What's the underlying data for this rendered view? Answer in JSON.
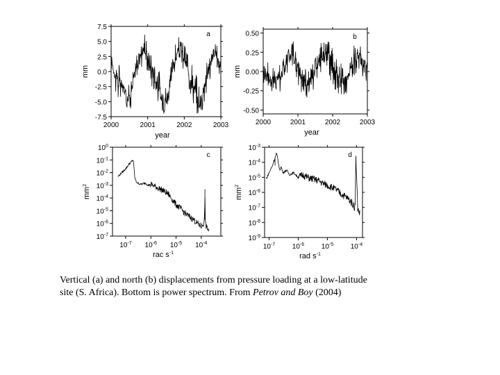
{
  "caption": {
    "line1": "Vertical (a) and north (b) displacements from pressure loading at a low-latitude",
    "line2_a": "site (S. Africa).  Bottom is power spectrum.  From ",
    "line2_italic": "Petrov and Boy",
    "line2_b": " (2004)"
  },
  "chart_data": [
    {
      "id": "a",
      "type": "line",
      "panel_label": "a",
      "xlabel": "year",
      "ylabel": "mm",
      "xlim": [
        2000,
        2003
      ],
      "ylim": [
        -7.5,
        7.5
      ],
      "xticks": [
        2000,
        2001,
        2002,
        2003
      ],
      "xtick_labels": [
        "2000",
        "2001",
        "2002",
        "2003"
      ],
      "yticks": [
        7.5,
        5.0,
        2.5,
        0.0,
        -2.5,
        -5.0,
        -7.5
      ],
      "ytick_labels": [
        "7.5",
        "5.0",
        "2.5",
        "0.0",
        "-2.5",
        "-5.0",
        "-7.5"
      ],
      "x": [
        2000.0,
        2000.1,
        2000.2,
        2000.3,
        2000.4,
        2000.5,
        2000.6,
        2000.7,
        2000.8,
        2000.9,
        2001.0,
        2001.1,
        2001.2,
        2001.3,
        2001.4,
        2001.5,
        2001.6,
        2001.7,
        2001.8,
        2001.9,
        2002.0,
        2002.1,
        2002.2,
        2002.3,
        2002.4,
        2002.5,
        2002.6,
        2002.7,
        2002.8,
        2002.9,
        2003.0
      ],
      "y": [
        2.5,
        -0.5,
        -1.5,
        -2.5,
        -3.5,
        -4.5,
        -2.0,
        1.0,
        2.5,
        4.0,
        2.0,
        0.5,
        -1.0,
        -3.0,
        -4.5,
        -5.0,
        -2.5,
        1.0,
        3.0,
        4.0,
        2.0,
        0.5,
        -1.5,
        -3.5,
        -5.5,
        -4.0,
        -1.0,
        1.0,
        3.0,
        2.5,
        1.0
      ],
      "y_max_envelope": [
        5.2,
        3.0,
        1.5,
        0.5,
        -0.5,
        -1.5,
        1.0,
        3.5,
        5.0,
        6.5,
        4.5,
        3.5,
        2.0,
        0.5,
        -1.0,
        -1.5,
        0.5,
        3.5,
        5.5,
        6.0,
        4.5,
        3.5,
        1.5,
        0.0,
        -1.5,
        -0.5,
        2.0,
        3.5,
        5.0,
        5.0,
        3.5
      ],
      "y_min_envelope": [
        -0.5,
        -3.5,
        -5.0,
        -5.5,
        -6.5,
        -7.0,
        -4.5,
        -1.5,
        0.0,
        1.5,
        -0.5,
        -2.5,
        -4.0,
        -6.0,
        -7.0,
        -7.5,
        -5.5,
        -2.0,
        0.5,
        1.5,
        -0.5,
        -2.5,
        -4.5,
        -6.5,
        -7.5,
        -6.5,
        -4.0,
        -1.5,
        0.5,
        0.0,
        -1.5
      ]
    },
    {
      "id": "b",
      "type": "line",
      "panel_label": "b",
      "xlabel": "year",
      "ylabel": "mm",
      "xlim": [
        2000,
        2003
      ],
      "ylim": [
        -0.55,
        0.55
      ],
      "xticks": [
        2000,
        2001,
        2002,
        2003
      ],
      "xtick_labels": [
        "2000",
        "2001",
        "2002",
        "2003"
      ],
      "yticks": [
        0.5,
        0.25,
        0.0,
        -0.25,
        -0.5
      ],
      "ytick_labels": [
        "0.50",
        "0.25",
        "0.00",
        "-0.25",
        "-0.50"
      ],
      "x": [
        2000.0,
        2000.1,
        2000.2,
        2000.3,
        2000.4,
        2000.5,
        2000.6,
        2000.7,
        2000.8,
        2000.9,
        2001.0,
        2001.1,
        2001.2,
        2001.3,
        2001.4,
        2001.5,
        2001.6,
        2001.7,
        2001.8,
        2001.9,
        2002.0,
        2002.1,
        2002.2,
        2002.3,
        2002.4,
        2002.5,
        2002.6,
        2002.7,
        2002.8,
        2002.9,
        2003.0
      ],
      "y": [
        0.05,
        -0.05,
        -0.1,
        -0.12,
        -0.1,
        -0.05,
        0.05,
        0.15,
        0.2,
        0.15,
        0.05,
        -0.05,
        -0.12,
        -0.15,
        -0.1,
        0.0,
        0.1,
        0.18,
        0.22,
        0.15,
        0.05,
        -0.05,
        -0.1,
        -0.12,
        -0.08,
        0.0,
        0.1,
        0.2,
        0.15,
        0.1,
        0.05
      ],
      "y_max_envelope": [
        0.25,
        0.18,
        0.12,
        0.1,
        0.1,
        0.15,
        0.28,
        0.38,
        0.45,
        0.4,
        0.3,
        0.18,
        0.1,
        0.08,
        0.1,
        0.22,
        0.32,
        0.42,
        0.48,
        0.4,
        0.3,
        0.18,
        0.12,
        0.1,
        0.12,
        0.22,
        0.32,
        0.42,
        0.4,
        0.35,
        0.3
      ],
      "y_min_envelope": [
        -0.15,
        -0.25,
        -0.32,
        -0.35,
        -0.32,
        -0.28,
        -0.18,
        -0.08,
        -0.02,
        -0.08,
        -0.18,
        -0.28,
        -0.35,
        -0.38,
        -0.32,
        -0.22,
        -0.12,
        -0.05,
        0.0,
        -0.08,
        -0.18,
        -0.28,
        -0.32,
        -0.35,
        -0.3,
        -0.22,
        -0.12,
        -0.02,
        -0.08,
        -0.12,
        -0.18
      ]
    },
    {
      "id": "c",
      "type": "line",
      "panel_label": "c",
      "xlabel": "rac s",
      "xlabel_sup": "-1",
      "ylabel": "mm",
      "ylabel_sup": "2",
      "xscale": "log",
      "yscale": "log",
      "xlim": [
        3e-08,
        0.0006
      ],
      "ylim": [
        1e-07,
        1
      ],
      "xticks": [
        1e-07,
        1e-06,
        1e-05,
        0.0001
      ],
      "xtick_base": "10",
      "xtick_exponents": [
        "-7",
        "-6",
        "-5",
        "-4"
      ],
      "yticks": [
        1,
        0.1,
        0.01,
        0.001,
        0.0001,
        1e-05,
        1e-06,
        1e-07
      ],
      "ytick_base": "10",
      "ytick_exponents": [
        "0",
        "-1",
        "-2",
        "-3",
        "-4",
        "-5",
        "-6",
        "-7"
      ],
      "x": [
        5e-08,
        7e-08,
        1e-07,
        1.4e-07,
        2e-07,
        2.3e-07,
        2.6e-07,
        3e-07,
        4e-07,
        6e-07,
        8e-07,
        1e-06,
        1.5e-06,
        2e-06,
        3e-06,
        5e-06,
        7e-06,
        1e-05,
        1.5e-05,
        2e-05,
        3e-05,
        5e-05,
        7e-05,
        0.0001,
        0.00012,
        0.000135,
        0.00014,
        0.000145,
        0.00016,
        0.0002
      ],
      "y": [
        0.005,
        0.01,
        0.02,
        0.05,
        0.1,
        0.004,
        0.002,
        0.0015,
        0.0012,
        0.0015,
        0.001,
        0.0012,
        0.0008,
        0.0006,
        0.0004,
        0.0002,
        8e-05,
        3e-05,
        1.5e-05,
        8e-06,
        4e-06,
        2e-06,
        1e-06,
        6e-07,
        8e-07,
        2e-06,
        0.0005,
        1e-06,
        5e-07,
        3e-07
      ]
    },
    {
      "id": "d",
      "type": "line",
      "panel_label": "d",
      "xlabel": "rad s",
      "xlabel_sup": "-1",
      "ylabel": "mm",
      "ylabel_sup": "2",
      "xscale": "log",
      "yscale": "log",
      "xlim": [
        7e-08,
        0.00016
      ],
      "ylim": [
        1e-09,
        0.001
      ],
      "xticks": [
        1e-07,
        1e-06,
        1e-05,
        0.0001
      ],
      "xtick_base": "10",
      "xtick_exponents": [
        "-7",
        "-6",
        "-5",
        "-4"
      ],
      "yticks": [
        0.001,
        0.0001,
        1e-05,
        1e-06,
        1e-07,
        1e-08,
        1e-09
      ],
      "ytick_base": "10",
      "ytick_exponents": [
        "-3",
        "-4",
        "-5",
        "-6",
        "-7",
        "-8",
        "-9"
      ],
      "x": [
        8e-08,
        1e-07,
        1.3e-07,
        1.6e-07,
        1.8e-07,
        2e-07,
        2.3e-07,
        2.6e-07,
        3e-07,
        4e-07,
        5e-07,
        7e-07,
        1e-06,
        1.5e-06,
        2e-06,
        3e-06,
        5e-06,
        7e-06,
        1e-05,
        1.5e-05,
        2e-05,
        3e-05,
        5e-05,
        7e-05,
        8.5e-05,
        9e-05,
        9.5e-05,
        0.00011,
        0.00013
      ],
      "y": [
        8e-06,
        2e-05,
        6e-05,
        0.0002,
        0.0004,
        0.00015,
        3e-05,
        5e-05,
        2e-05,
        3e-05,
        1.5e-05,
        2e-05,
        1e-05,
        1.5e-05,
        1e-05,
        8e-06,
        6e-06,
        4e-06,
        3e-06,
        2e-06,
        1.5e-06,
        8e-07,
        4e-07,
        2e-07,
        1e-07,
        3e-07,
        0.0002,
        8e-08,
        4e-08
      ]
    }
  ]
}
